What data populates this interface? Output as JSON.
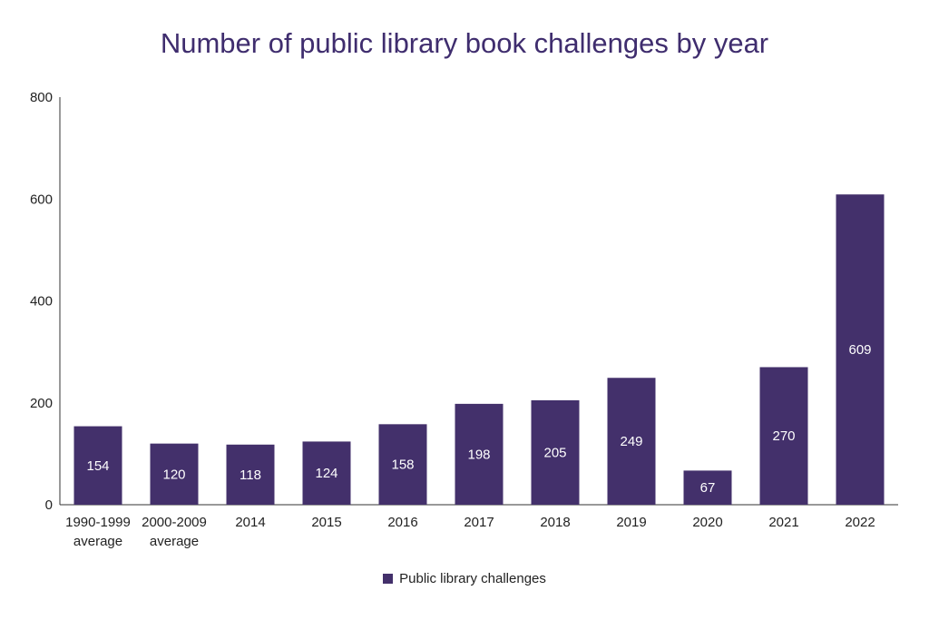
{
  "chart_data": {
    "type": "bar",
    "title": "Number of public library book challenges by year",
    "categories": [
      "1990-1999 average",
      "2000-2009 average",
      "2014",
      "2015",
      "2016",
      "2017",
      "2018",
      "2019",
      "2020",
      "2021",
      "2022"
    ],
    "category_lines": [
      [
        "1990-1999",
        "average"
      ],
      [
        "2000-2009",
        "average"
      ],
      [
        "2014"
      ],
      [
        "2015"
      ],
      [
        "2016"
      ],
      [
        "2017"
      ],
      [
        "2018"
      ],
      [
        "2019"
      ],
      [
        "2020"
      ],
      [
        "2021"
      ],
      [
        "2022"
      ]
    ],
    "series": [
      {
        "name": "Public library challenges",
        "values": [
          154,
          120,
          118,
          124,
          158,
          198,
          205,
          249,
          67,
          270,
          609
        ]
      }
    ],
    "ylim": [
      0,
      800
    ],
    "yticks": [
      0,
      200,
      400,
      600,
      800
    ],
    "grid": false,
    "legend_position": "bottom",
    "data_labels": true,
    "colors": {
      "bar": "#43306b",
      "title": "#3f2d6e",
      "axis": "#333333",
      "text": "#222222",
      "label": "#ffffff"
    }
  }
}
